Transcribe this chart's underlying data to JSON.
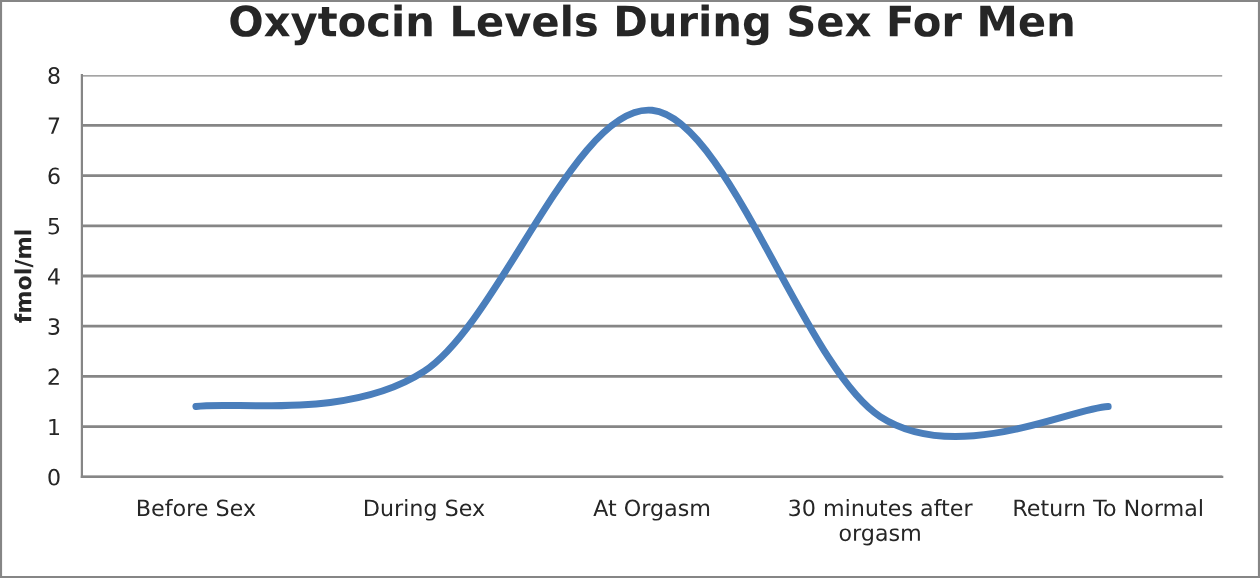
{
  "chart_data": {
    "type": "line",
    "title": "Oxytocin Levels During Sex For Men",
    "ylabel": "fmol/ml",
    "categories": [
      "Before Sex",
      "During Sex",
      "At Orgasm",
      "30 minutes after\norgasm",
      "Return To Normal"
    ],
    "series": [
      {
        "color": "#4a7ebb",
        "values": [
          1.4,
          2.1,
          7.3,
          1.2,
          1.4
        ]
      }
    ],
    "ylim": [
      0,
      8
    ],
    "yticks": [
      0,
      1,
      2,
      3,
      4,
      5,
      6,
      7,
      8
    ],
    "grid": "y",
    "legend": false,
    "marker": "none",
    "line_style": "solid"
  }
}
